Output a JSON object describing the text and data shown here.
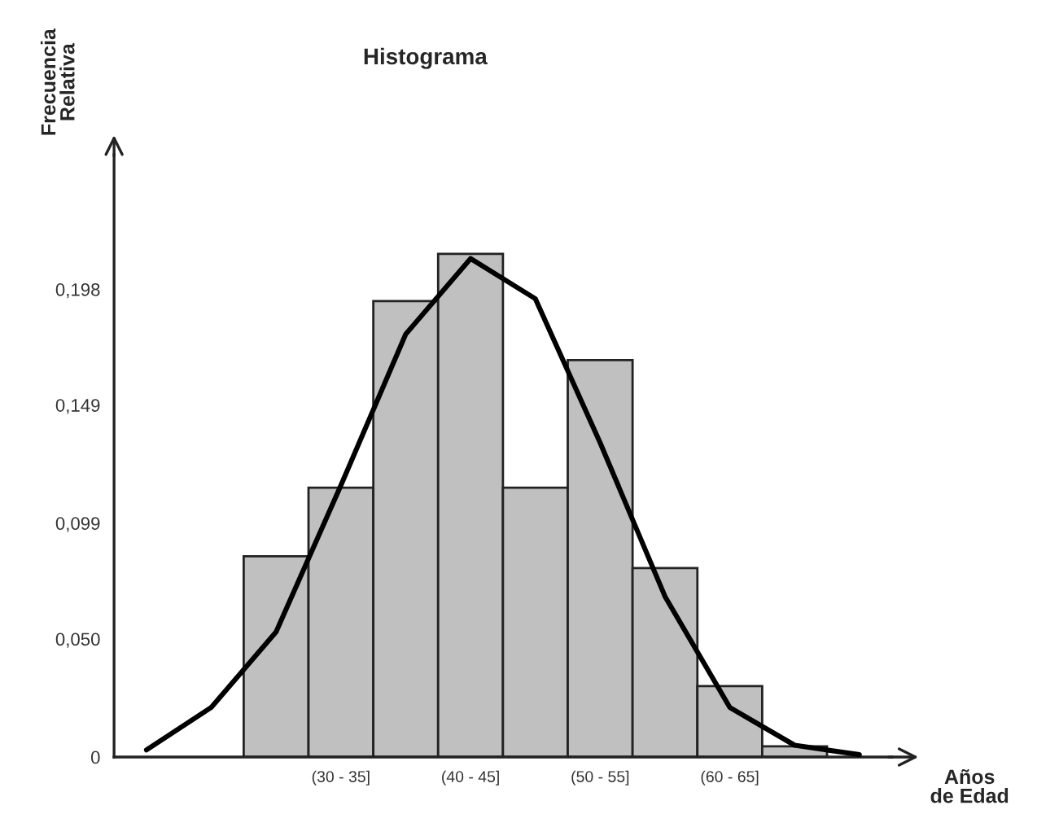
{
  "chart_data": {
    "type": "bar",
    "title": "Histograma",
    "xlabel": "Años\nde Edad",
    "ylabel": "Frecuencia\nRelativa",
    "categories": [
      null,
      null,
      null,
      "(30 - 35]",
      null,
      "(40 - 45]",
      null,
      "(50 - 55]",
      null,
      "(60 - 65]",
      null,
      null
    ],
    "values": [
      null,
      null,
      0.085,
      0.114,
      0.193,
      0.213,
      0.114,
      0.168,
      0.08,
      0.03,
      0.0045,
      null
    ],
    "color": "#c0c0c0",
    "series": [
      {
        "type": "line",
        "color": "#000000",
        "values": [
          0.003,
          0.021,
          0.053,
          0.115,
          0.179,
          0.211,
          0.194,
          0.133,
          0.068,
          0.021,
          0.005,
          0.001
        ]
      }
    ],
    "ylim": [
      0,
      0.255
    ],
    "yticks": [
      0,
      {
        "value": 0.05,
        "label": "0,050"
      },
      {
        "value": 0.099,
        "label": "0,099"
      },
      {
        "value": 0.149,
        "label": "0,149"
      },
      {
        "value": 0.198,
        "label": "0,198"
      }
    ],
    "grid": false,
    "legend": false
  }
}
